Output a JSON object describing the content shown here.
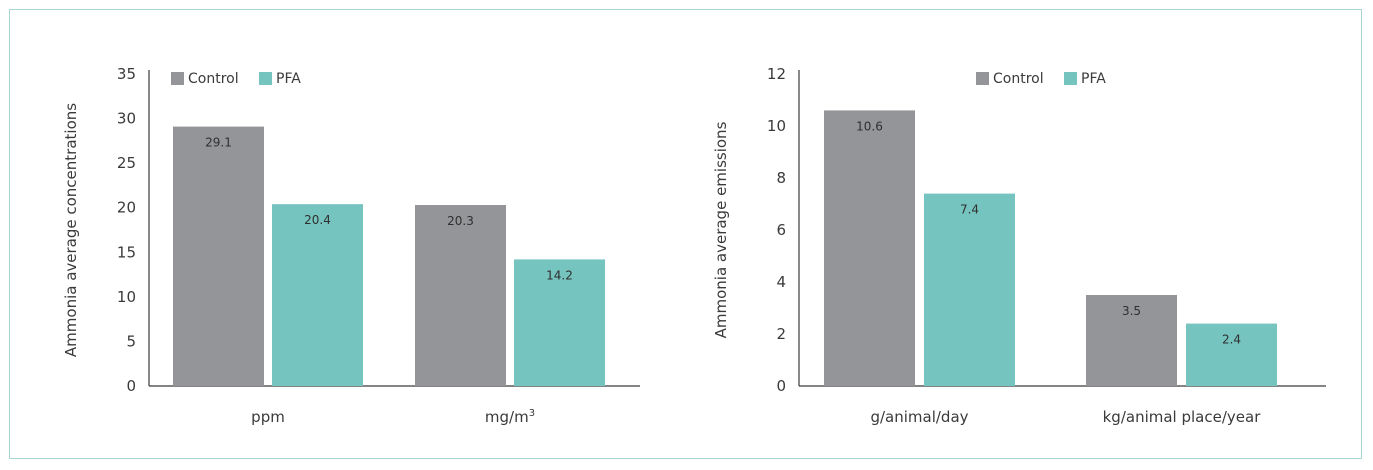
{
  "colors": {
    "control": "#939598",
    "pfa": "#75c4bf",
    "axis": "#3a3a3a",
    "border": "#a9d6d3"
  },
  "chart_data": [
    {
      "type": "bar",
      "title": "",
      "ylabel": "Ammonia average concentrations",
      "xlabel": "",
      "ylim": [
        0,
        35
      ],
      "yticks": [
        0,
        5,
        10,
        15,
        20,
        25,
        30,
        35
      ],
      "categories": [
        "ppm",
        "mg/m"
      ],
      "category_superscripts": [
        "",
        "3"
      ],
      "legend_position": "top-center",
      "grid": false,
      "series": [
        {
          "name": "Control",
          "values": [
            29.1,
            20.3
          ],
          "labels": [
            "29.1",
            "20.3"
          ]
        },
        {
          "name": "PFA",
          "values": [
            20.4,
            14.2
          ],
          "labels": [
            "20.4",
            "14.2"
          ]
        }
      ]
    },
    {
      "type": "bar",
      "title": "",
      "ylabel": "Ammonia average emissions",
      "xlabel": "",
      "ylim": [
        0,
        12
      ],
      "yticks": [
        0,
        2,
        4,
        6,
        8,
        10,
        12
      ],
      "categories": [
        "g/animal/day",
        "kg/animal place/year"
      ],
      "category_superscripts": [
        "",
        ""
      ],
      "legend_position": "top-center",
      "grid": false,
      "series": [
        {
          "name": "Control",
          "values": [
            10.6,
            3.5
          ],
          "labels": [
            "10.6",
            "3.5"
          ]
        },
        {
          "name": "PFA",
          "values": [
            7.4,
            2.4
          ],
          "labels": [
            "7.4",
            "2.4"
          ]
        }
      ]
    }
  ]
}
